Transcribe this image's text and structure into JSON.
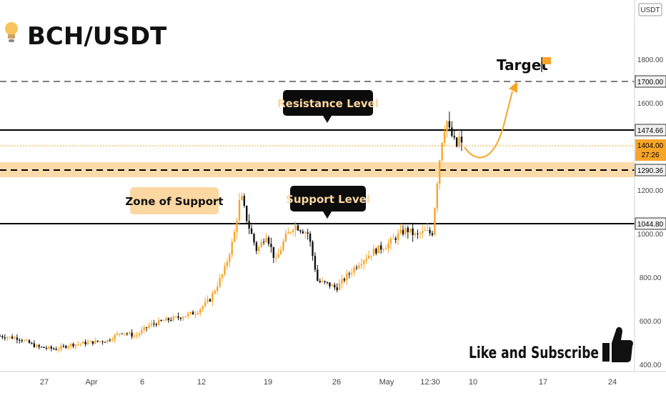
{
  "header": {
    "title": "BCH/USDT",
    "bulb_icon": "lightbulb-icon"
  },
  "currency_label": "USDT",
  "colors": {
    "candle": "#f7a529",
    "candle_dark": "#111111",
    "zone": "#fbd7a1",
    "arrow": "#f7a529",
    "level_line": "#000000",
    "axis_badge_orange": "#f7a529"
  },
  "chart_data": {
    "type": "candlestick",
    "title": "BCH/USDT",
    "ylim": [
      390,
      1950
    ],
    "y_ticks": [
      "1800.00",
      "1600.00",
      "1200.00",
      "1000.00",
      "800.00",
      "600.00",
      "400.00"
    ],
    "y_tick_values": [
      1800,
      1600,
      1200,
      1000,
      800,
      600,
      400
    ],
    "x_ticks": [
      "27",
      "Apr",
      "6",
      "12",
      "19",
      "26",
      "May",
      "12:30",
      "10",
      "17",
      "24"
    ],
    "price_labels": {
      "target": "1700.00",
      "resistance": "1474.66",
      "current": "1404.00",
      "countdown": "27:26",
      "zone": "1290.36",
      "support": "1044.80"
    },
    "levels": {
      "target": 1700,
      "resistance": 1474.66,
      "current": 1404,
      "zone_top": 1330,
      "zone_bottom": 1270,
      "zone_mid": 1290.36,
      "support": 1044.8
    },
    "price_path": [
      [
        0,
        530
      ],
      [
        4,
        520
      ],
      [
        8,
        480
      ],
      [
        12,
        470
      ],
      [
        15,
        490
      ],
      [
        19,
        500
      ],
      [
        23,
        510
      ],
      [
        26,
        550
      ],
      [
        29,
        530
      ],
      [
        32,
        580
      ],
      [
        35,
        600
      ],
      [
        39,
        620
      ],
      [
        42,
        640
      ],
      [
        45,
        700
      ],
      [
        48,
        830
      ],
      [
        50,
        980
      ],
      [
        51.5,
        1180
      ],
      [
        53,
        1050
      ],
      [
        55,
        920
      ],
      [
        57,
        1000
      ],
      [
        59,
        870
      ],
      [
        61,
        980
      ],
      [
        63,
        1040
      ],
      [
        66,
        1000
      ],
      [
        68,
        780
      ],
      [
        70,
        770
      ],
      [
        72,
        750
      ],
      [
        74,
        800
      ],
      [
        77,
        870
      ],
      [
        80,
        920
      ],
      [
        83,
        950
      ],
      [
        85,
        990
      ],
      [
        87,
        1020
      ],
      [
        89,
        990
      ],
      [
        91,
        1010
      ],
      [
        92.5,
        1000
      ],
      [
        93.5,
        1230
      ],
      [
        94.5,
        1420
      ],
      [
        95.5,
        1530
      ],
      [
        96.3,
        1460
      ],
      [
        97,
        1440
      ],
      [
        97.6,
        1390
      ],
      [
        98.3,
        1440
      ],
      [
        98.8,
        1404
      ]
    ],
    "annotations": {
      "target_label": "Target",
      "resistance_label": "Resistance Level",
      "support_label": "Support Level",
      "zone_label": "Zone of Support"
    }
  },
  "footer": {
    "cta": "Like and Subscribe",
    "thumbs_icon": "thumbs-up-icon"
  }
}
